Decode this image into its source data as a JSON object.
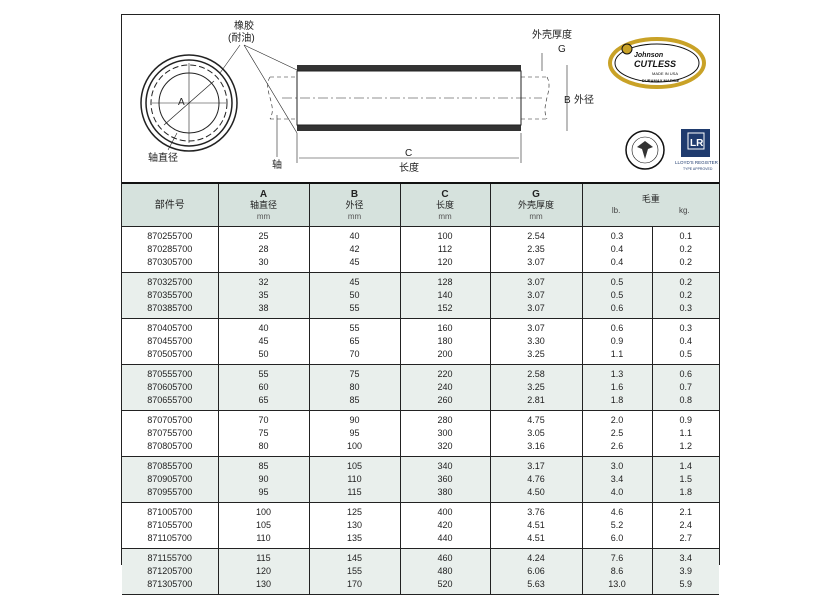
{
  "diagram": {
    "rubber_label": "橡胶",
    "rubber_sub": "(耐油)",
    "shell_label": "外壳厚度",
    "g": "G",
    "a": "A",
    "b": "B",
    "c": "C",
    "outer_label": "外径",
    "length_label": "长度",
    "shaft_label": "轴",
    "shaft_dia_label": "轴直径",
    "logo_text": "Johnson CUTLESS",
    "logo_sub": "DURAMAX MARINE",
    "logo_made": "MADE IN USA",
    "abs_text": "ABS TYPE APPROVED PRODUCT",
    "lloyds_text": "LLOYD'S REGISTER",
    "lloyds_sub": "TYPE APPROVED"
  },
  "table": {
    "headers": [
      {
        "letter": "",
        "name": "部件号",
        "unit": ""
      },
      {
        "letter": "A",
        "name": "轴直径",
        "unit": "mm"
      },
      {
        "letter": "B",
        "name": "外径",
        "unit": "mm"
      },
      {
        "letter": "C",
        "name": "长度",
        "unit": "mm"
      },
      {
        "letter": "G",
        "name": "外壳厚度",
        "unit": "mm"
      },
      {
        "letter": "",
        "name": "毛重",
        "unit": "",
        "sub": [
          "lb.",
          "kg."
        ]
      }
    ],
    "groups": [
      [
        [
          "870255700",
          "25",
          "40",
          "100",
          "2.54",
          "0.3",
          "0.1"
        ],
        [
          "870285700",
          "28",
          "42",
          "112",
          "2.35",
          "0.4",
          "0.2"
        ],
        [
          "870305700",
          "30",
          "45",
          "120",
          "3.07",
          "0.4",
          "0.2"
        ]
      ],
      [
        [
          "870325700",
          "32",
          "45",
          "128",
          "3.07",
          "0.5",
          "0.2"
        ],
        [
          "870355700",
          "35",
          "50",
          "140",
          "3.07",
          "0.5",
          "0.2"
        ],
        [
          "870385700",
          "38",
          "55",
          "152",
          "3.07",
          "0.6",
          "0.3"
        ]
      ],
      [
        [
          "870405700",
          "40",
          "55",
          "160",
          "3.07",
          "0.6",
          "0.3"
        ],
        [
          "870455700",
          "45",
          "65",
          "180",
          "3.30",
          "0.9",
          "0.4"
        ],
        [
          "870505700",
          "50",
          "70",
          "200",
          "3.25",
          "1.1",
          "0.5"
        ]
      ],
      [
        [
          "870555700",
          "55",
          "75",
          "220",
          "2.58",
          "1.3",
          "0.6"
        ],
        [
          "870605700",
          "60",
          "80",
          "240",
          "3.25",
          "1.6",
          "0.7"
        ],
        [
          "870655700",
          "65",
          "85",
          "260",
          "2.81",
          "1.8",
          "0.8"
        ]
      ],
      [
        [
          "870705700",
          "70",
          "90",
          "280",
          "4.75",
          "2.0",
          "0.9"
        ],
        [
          "870755700",
          "75",
          "95",
          "300",
          "3.05",
          "2.5",
          "1.1"
        ],
        [
          "870805700",
          "80",
          "100",
          "320",
          "3.16",
          "2.6",
          "1.2"
        ]
      ],
      [
        [
          "870855700",
          "85",
          "105",
          "340",
          "3.17",
          "3.0",
          "1.4"
        ],
        [
          "870905700",
          "90",
          "110",
          "360",
          "4.76",
          "3.4",
          "1.5"
        ],
        [
          "870955700",
          "95",
          "115",
          "380",
          "4.50",
          "4.0",
          "1.8"
        ]
      ],
      [
        [
          "871005700",
          "100",
          "125",
          "400",
          "3.76",
          "4.6",
          "2.1"
        ],
        [
          "871055700",
          "105",
          "130",
          "420",
          "4.51",
          "5.2",
          "2.4"
        ],
        [
          "871105700",
          "110",
          "135",
          "440",
          "4.51",
          "6.0",
          "2.7"
        ]
      ],
      [
        [
          "871155700",
          "115",
          "145",
          "460",
          "4.24",
          "7.6",
          "3.4"
        ],
        [
          "871205700",
          "120",
          "155",
          "480",
          "6.06",
          "8.6",
          "3.9"
        ],
        [
          "871305700",
          "130",
          "170",
          "520",
          "5.63",
          "13.0",
          "5.9"
        ]
      ]
    ]
  }
}
